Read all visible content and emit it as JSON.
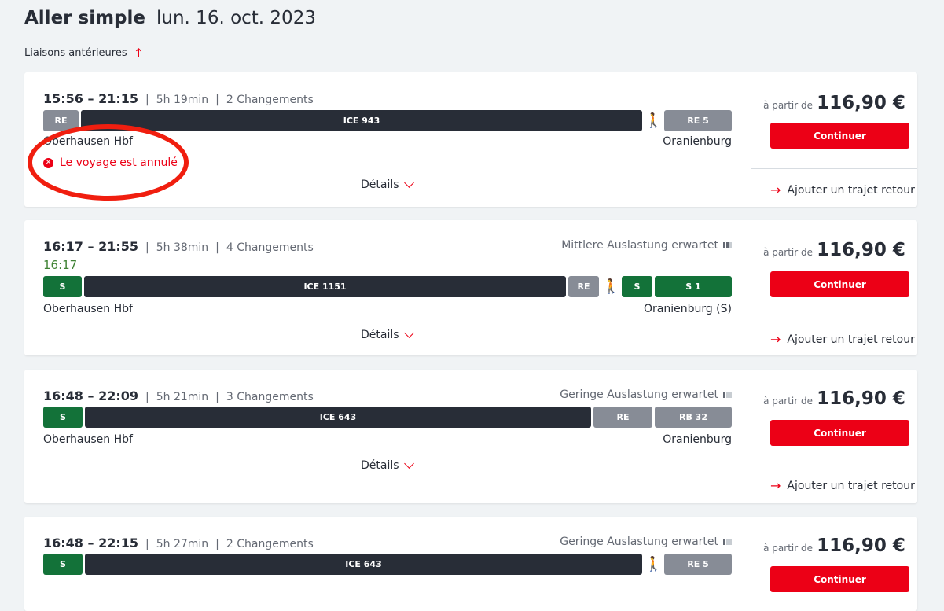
{
  "header": {
    "title": "Aller simple",
    "date": "lun. 16. oct. 2023",
    "earlier": "Liaisons antérieures"
  },
  "colors": {
    "accent": "#ec0016",
    "ice": "#282d37",
    "regional": "#878c96",
    "sbahn": "#137239",
    "realtime": "#408335"
  },
  "journeys": [
    {
      "time": "15:56 – 21:15",
      "duration": "5h 19min",
      "changes": "2 Changements",
      "load": "",
      "realtime": "",
      "from": "Oberhausen Hbf",
      "to": "Oranienburg",
      "cancelled": "Le voyage est annulé",
      "details": "Détails",
      "price_prefix": "à partir de",
      "price": "116,90 €",
      "continue": "Continuer",
      "return": "Ajouter un trajet retour",
      "segments": [
        {
          "label": "RE",
          "type": "regional"
        },
        {
          "label": "ICE 943",
          "type": "ice"
        },
        {
          "label": "",
          "type": "walk"
        },
        {
          "label": "RE 5",
          "type": "regional"
        }
      ]
    },
    {
      "time": "16:17 – 21:55",
      "duration": "5h 38min",
      "changes": "4 Changements",
      "load": "Mittlere Auslastung erwartet",
      "occupancy": "medium",
      "realtime": "16:17",
      "from": "Oberhausen Hbf",
      "to": "Oranienburg (S)",
      "cancelled": "",
      "details": "Détails",
      "price_prefix": "à partir de",
      "price": "116,90 €",
      "continue": "Continuer",
      "return": "Ajouter un trajet retour",
      "segments": [
        {
          "label": "S",
          "type": "sbahn"
        },
        {
          "label": "ICE 1151",
          "type": "ice"
        },
        {
          "label": "RE",
          "type": "regional"
        },
        {
          "label": "",
          "type": "walk"
        },
        {
          "label": "S",
          "type": "sbahn"
        },
        {
          "label": "S 1",
          "type": "sbahn"
        }
      ]
    },
    {
      "time": "16:48 – 22:09",
      "duration": "5h 21min",
      "changes": "3 Changements",
      "load": "Geringe Auslastung erwartet",
      "occupancy": "low",
      "realtime": "",
      "from": "Oberhausen Hbf",
      "to": "Oranienburg",
      "cancelled": "",
      "details": "Détails",
      "price_prefix": "à partir de",
      "price": "116,90 €",
      "continue": "Continuer",
      "return": "Ajouter un trajet retour",
      "segments": [
        {
          "label": "S",
          "type": "sbahn"
        },
        {
          "label": "ICE 643",
          "type": "ice"
        },
        {
          "label": "RE",
          "type": "regional"
        },
        {
          "label": "RB 32",
          "type": "regional"
        }
      ]
    },
    {
      "time": "16:48 – 22:15",
      "duration": "5h 27min",
      "changes": "2 Changements",
      "load": "Geringe Auslastung erwartet",
      "occupancy": "low",
      "realtime": "",
      "from": "",
      "to": "",
      "cancelled": "",
      "details": "",
      "price_prefix": "à partir de",
      "price": "116,90 €",
      "continue": "Continuer",
      "return": "",
      "segments": [
        {
          "label": "S",
          "type": "sbahn"
        },
        {
          "label": "ICE 643",
          "type": "ice"
        },
        {
          "label": "",
          "type": "walk"
        },
        {
          "label": "RE 5",
          "type": "regional"
        }
      ]
    }
  ]
}
